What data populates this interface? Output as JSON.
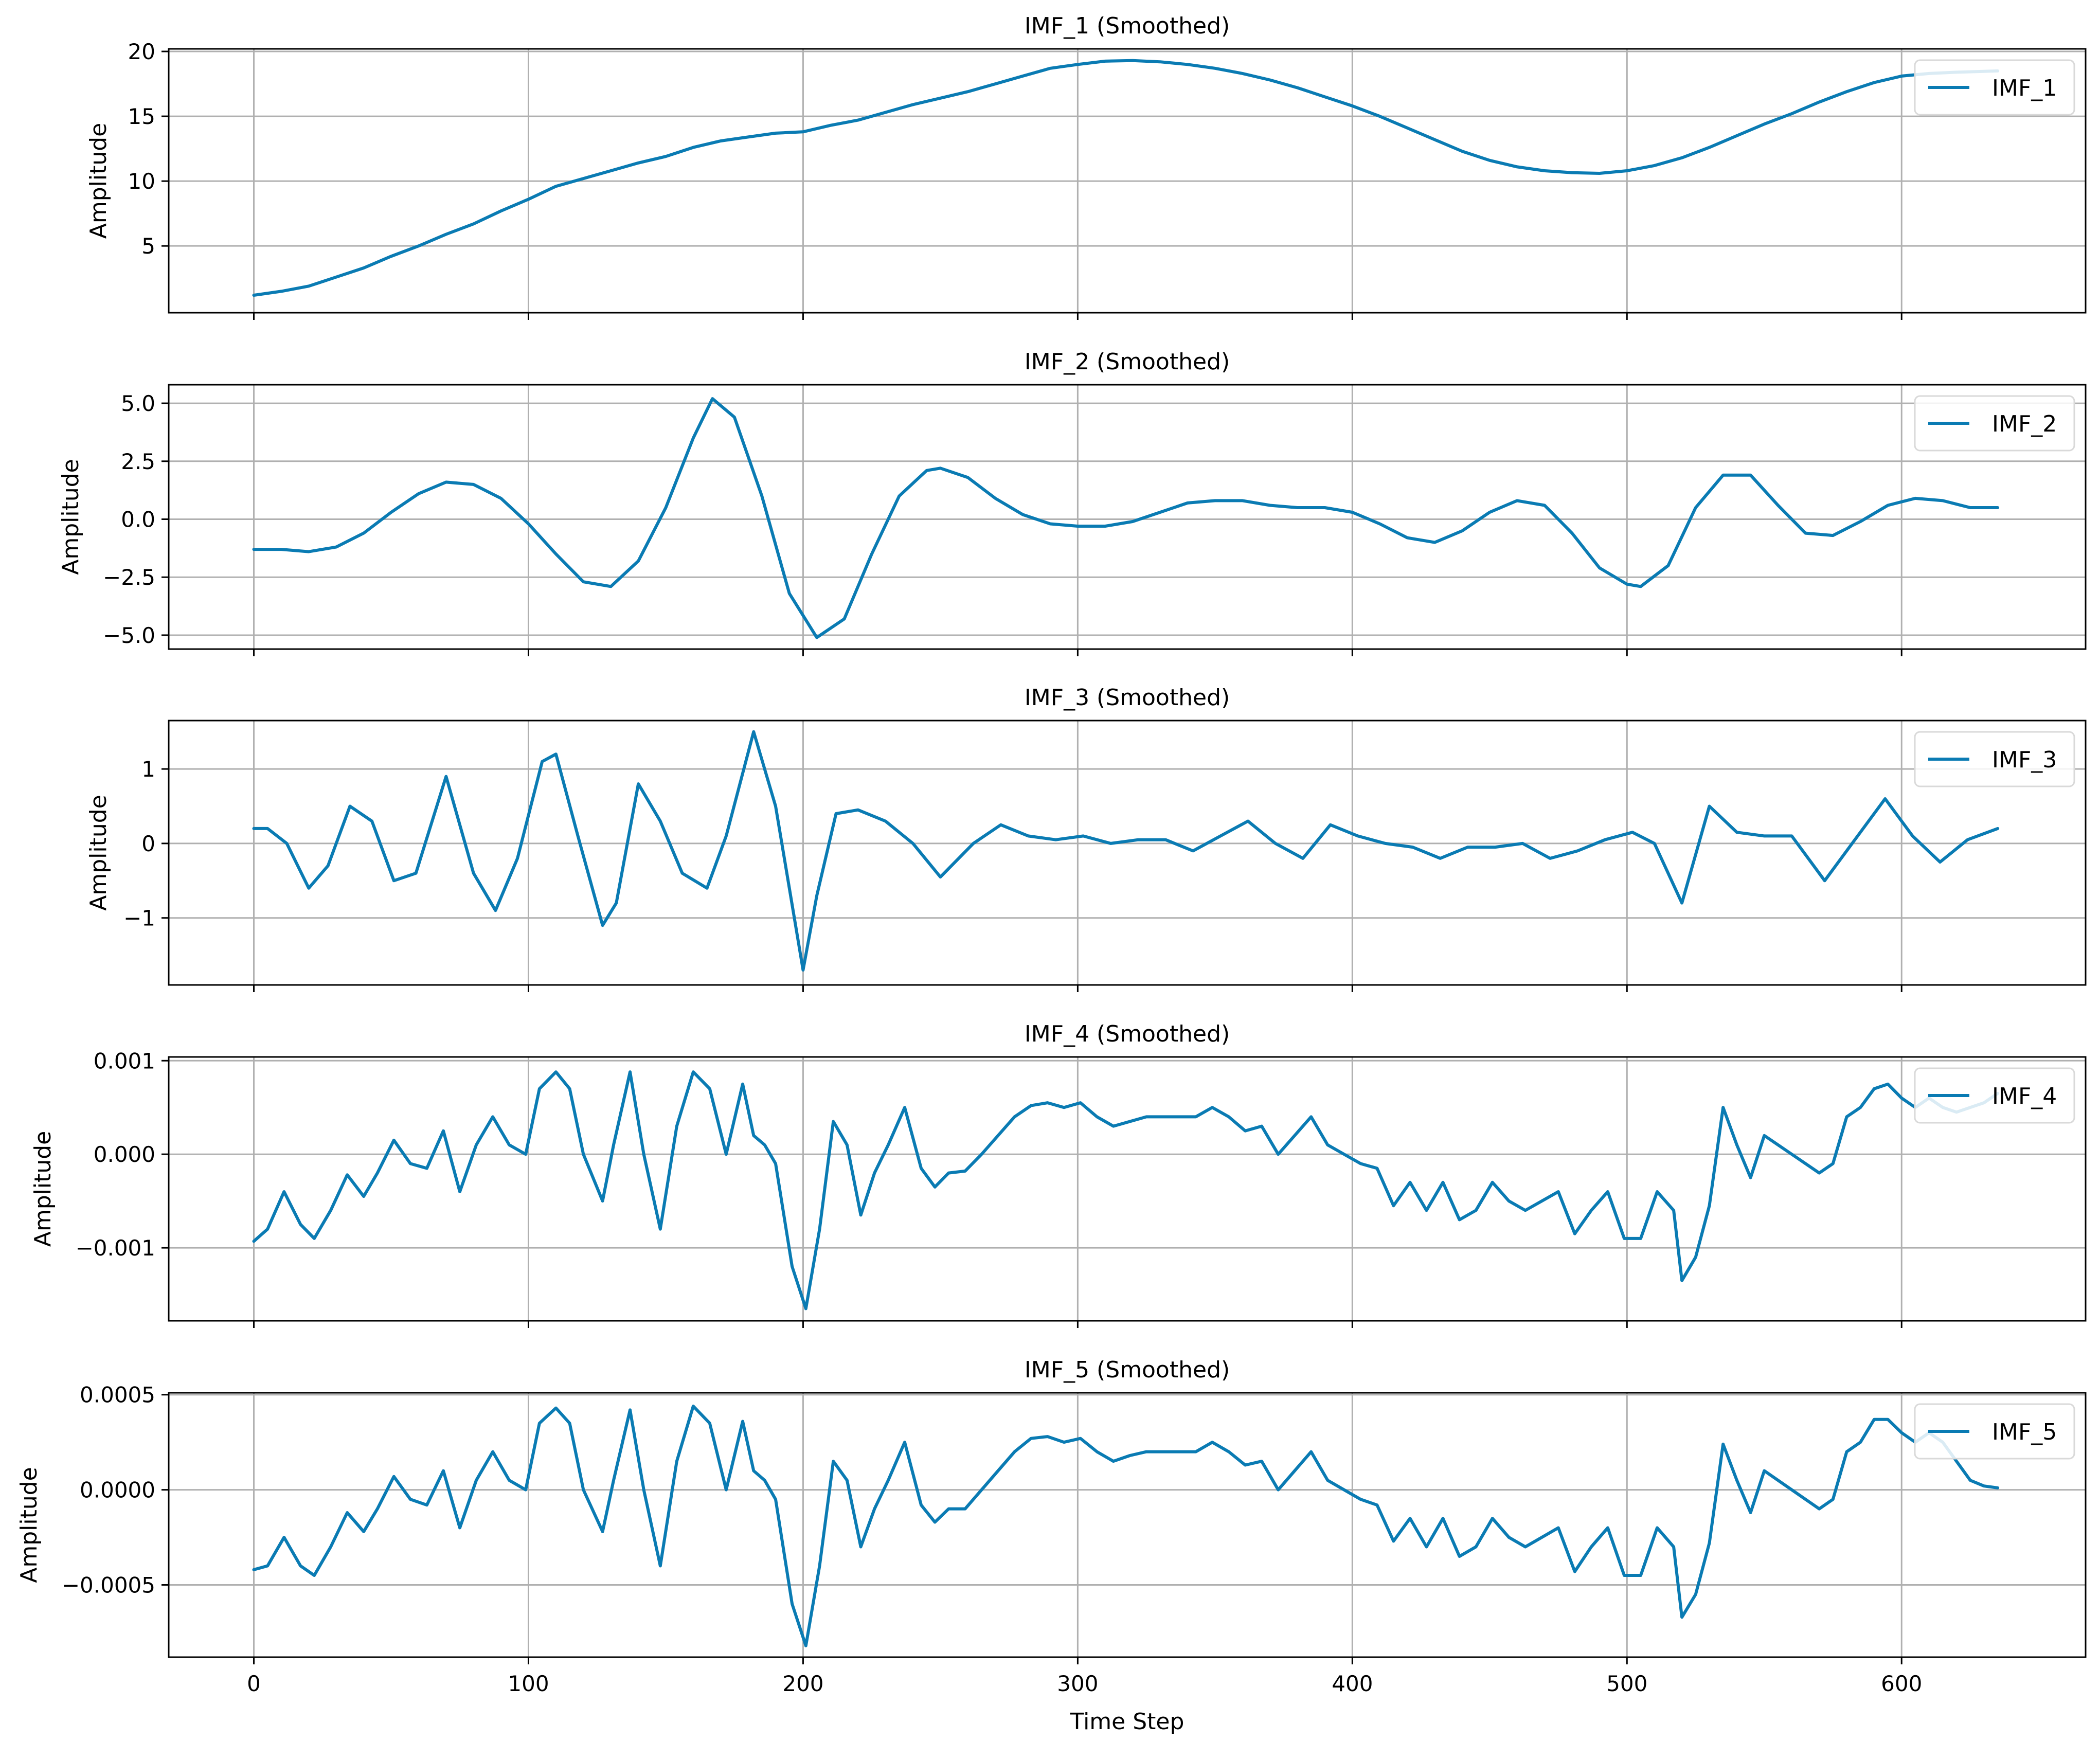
{
  "x_axis": {
    "label": "Time Step",
    "ticks": [
      "0",
      "100",
      "200",
      "300",
      "400",
      "500",
      "600"
    ]
  },
  "colors": {
    "line": "#0a7bb3",
    "grid": "#b0b0b0",
    "axes": "#000000",
    "background": "#ffffff",
    "legend_border": "#d9d9d9"
  },
  "chart_data": [
    {
      "type": "line",
      "title": "IMF_1 (Smoothed)",
      "ylabel": "Amplitude",
      "yticks": [
        5,
        10,
        15,
        20
      ],
      "ytick_labels": [
        "5",
        "10",
        "15",
        "20"
      ],
      "ylim": [
        -0.15,
        20.2
      ],
      "xlim": [
        -31,
        667
      ],
      "grid": true,
      "legend": {
        "position": "top-right",
        "label": "IMF_1"
      },
      "series": [
        {
          "name": "IMF_1",
          "x": [
            0,
            10,
            20,
            30,
            40,
            50,
            60,
            70,
            80,
            90,
            100,
            110,
            120,
            130,
            140,
            150,
            160,
            170,
            180,
            190,
            200,
            210,
            220,
            230,
            240,
            250,
            260,
            270,
            280,
            290,
            300,
            310,
            320,
            330,
            340,
            350,
            360,
            370,
            380,
            390,
            400,
            410,
            420,
            430,
            440,
            450,
            460,
            470,
            480,
            490,
            500,
            510,
            520,
            530,
            540,
            550,
            560,
            570,
            580,
            590,
            600,
            610,
            620,
            635
          ],
          "y": [
            1.2,
            1.5,
            1.9,
            2.6,
            3.3,
            4.2,
            5.0,
            5.9,
            6.7,
            7.7,
            8.6,
            9.6,
            10.2,
            10.8,
            11.4,
            11.9,
            12.6,
            13.1,
            13.4,
            13.7,
            13.8,
            14.3,
            14.7,
            15.3,
            15.9,
            16.4,
            16.9,
            17.5,
            18.1,
            18.7,
            19.0,
            19.25,
            19.3,
            19.2,
            19.0,
            18.7,
            18.3,
            17.8,
            17.2,
            16.5,
            15.8,
            15.0,
            14.1,
            13.2,
            12.3,
            11.6,
            11.1,
            10.8,
            10.65,
            10.6,
            10.8,
            11.2,
            11.8,
            12.6,
            13.5,
            14.4,
            15.2,
            16.1,
            16.9,
            17.6,
            18.1,
            18.3,
            18.4,
            18.5
          ]
        }
      ]
    },
    {
      "type": "line",
      "title": "IMF_2 (Smoothed)",
      "ylabel": "Amplitude",
      "yticks": [
        -5.0,
        -2.5,
        0.0,
        2.5,
        5.0
      ],
      "ytick_labels": [
        "−5.0",
        "−2.5",
        "0.0",
        "2.5",
        "5.0"
      ],
      "ylim": [
        -5.6,
        5.8
      ],
      "xlim": [
        -31,
        667
      ],
      "grid": true,
      "legend": {
        "position": "top-right",
        "label": "IMF_2"
      },
      "series": [
        {
          "name": "IMF_2",
          "x": [
            0,
            10,
            20,
            30,
            40,
            50,
            60,
            70,
            80,
            90,
            100,
            110,
            120,
            130,
            140,
            150,
            160,
            167,
            175,
            185,
            195,
            205,
            215,
            225,
            235,
            245,
            250,
            260,
            270,
            280,
            290,
            300,
            310,
            320,
            330,
            340,
            350,
            360,
            370,
            380,
            390,
            400,
            410,
            420,
            430,
            440,
            450,
            460,
            470,
            480,
            490,
            500,
            505,
            515,
            525,
            535,
            545,
            555,
            565,
            575,
            585,
            595,
            605,
            615,
            625,
            635
          ],
          "y": [
            -1.3,
            -1.3,
            -1.4,
            -1.2,
            -0.6,
            0.3,
            1.1,
            1.6,
            1.5,
            0.9,
            -0.2,
            -1.5,
            -2.7,
            -2.9,
            -1.8,
            0.5,
            3.5,
            5.2,
            4.4,
            1.0,
            -3.2,
            -5.1,
            -4.3,
            -1.5,
            1.0,
            2.1,
            2.2,
            1.8,
            0.9,
            0.2,
            -0.2,
            -0.3,
            -0.3,
            -0.1,
            0.3,
            0.7,
            0.8,
            0.8,
            0.6,
            0.5,
            0.5,
            0.3,
            -0.2,
            -0.8,
            -1.0,
            -0.5,
            0.3,
            0.8,
            0.6,
            -0.6,
            -2.1,
            -2.8,
            -2.9,
            -2.0,
            0.5,
            1.9,
            1.9,
            0.6,
            -0.6,
            -0.7,
            -0.1,
            0.6,
            0.9,
            0.8,
            0.5,
            0.5
          ]
        }
      ]
    },
    {
      "type": "line",
      "title": "IMF_3 (Smoothed)",
      "ylabel": "Amplitude",
      "yticks": [
        -1,
        0,
        1
      ],
      "ytick_labels": [
        "−1",
        "0",
        "1"
      ],
      "ylim": [
        -1.9,
        1.65
      ],
      "xlim": [
        -31,
        667
      ],
      "grid": true,
      "legend": {
        "position": "top-right",
        "label": "IMF_3"
      },
      "series": [
        {
          "name": "IMF_3",
          "x": [
            0,
            5,
            12,
            20,
            27,
            35,
            43,
            51,
            59,
            70,
            80,
            88,
            96,
            105,
            110,
            118,
            127,
            132,
            140,
            148,
            156,
            165,
            172,
            182,
            190,
            200,
            205,
            212,
            220,
            230,
            240,
            250,
            262,
            272,
            282,
            292,
            302,
            312,
            322,
            332,
            342,
            352,
            362,
            372,
            382,
            392,
            402,
            412,
            422,
            432,
            442,
            452,
            462,
            472,
            482,
            492,
            502,
            510,
            520,
            530,
            540,
            550,
            560,
            572,
            584,
            594,
            604,
            614,
            624,
            635
          ],
          "y": [
            0.2,
            0.2,
            0.0,
            -0.6,
            -0.3,
            0.5,
            0.3,
            -0.5,
            -0.4,
            0.9,
            -0.4,
            -0.9,
            -0.2,
            1.1,
            1.2,
            0.1,
            -1.1,
            -0.8,
            0.8,
            0.3,
            -0.4,
            -0.6,
            0.1,
            1.5,
            0.5,
            -1.7,
            -0.7,
            0.4,
            0.45,
            0.3,
            0.0,
            -0.45,
            0.0,
            0.25,
            0.1,
            0.05,
            0.1,
            0.0,
            0.05,
            0.05,
            -0.1,
            0.1,
            0.3,
            0.0,
            -0.2,
            0.25,
            0.1,
            0.0,
            -0.05,
            -0.2,
            -0.05,
            -0.05,
            0.0,
            -0.2,
            -0.1,
            0.05,
            0.15,
            0.0,
            -0.8,
            0.5,
            0.15,
            0.1,
            0.1,
            -0.5,
            0.1,
            0.6,
            0.1,
            -0.25,
            0.05,
            0.2
          ]
        }
      ]
    },
    {
      "type": "line",
      "title": "IMF_4 (Smoothed)",
      "ylabel": "Amplitude",
      "yticks": [
        -0.001,
        0.0,
        0.001
      ],
      "ytick_labels": [
        "−0.001",
        "0.000",
        "0.001"
      ],
      "ylim": [
        -0.00178,
        0.00104
      ],
      "xlim": [
        -31,
        667
      ],
      "grid": true,
      "legend": {
        "position": "top-right",
        "label": "IMF_4"
      },
      "series": [
        {
          "name": "IMF_4",
          "x": [
            0,
            5,
            11,
            17,
            22,
            28,
            34,
            40,
            45,
            51,
            57,
            63,
            69,
            75,
            81,
            87,
            93,
            99,
            104,
            110,
            115,
            120,
            127,
            131,
            137,
            142,
            148,
            154,
            160,
            166,
            172,
            178,
            182,
            186,
            190,
            196,
            201,
            206,
            211,
            216,
            221,
            226,
            231,
            237,
            243,
            248,
            253,
            259,
            265,
            271,
            277,
            283,
            289,
            295,
            301,
            307,
            313,
            319,
            325,
            331,
            337,
            343,
            349,
            355,
            361,
            367,
            373,
            379,
            385,
            391,
            397,
            403,
            409,
            415,
            421,
            427,
            433,
            439,
            445,
            451,
            457,
            463,
            469,
            475,
            481,
            487,
            493,
            499,
            505,
            511,
            517,
            520,
            525,
            530,
            535,
            540,
            545,
            550,
            555,
            560,
            565,
            570,
            575,
            580,
            585,
            590,
            595,
            600,
            605,
            610,
            615,
            620,
            625,
            630,
            635
          ],
          "y": [
            -0.00093,
            -0.0008,
            -0.0004,
            -0.00075,
            -0.0009,
            -0.0006,
            -0.00022,
            -0.00045,
            -0.0002,
            0.00015,
            -0.0001,
            -0.00015,
            0.00025,
            -0.0004,
            0.0001,
            0.0004,
            0.0001,
            0.0,
            0.0007,
            0.00088,
            0.0007,
            0.0,
            -0.0005,
            0.0001,
            0.00088,
            0.0,
            -0.0008,
            0.0003,
            0.00088,
            0.0007,
            0.0,
            0.00075,
            0.0002,
            0.0001,
            -0.0001,
            -0.0012,
            -0.00165,
            -0.0008,
            0.00035,
            0.0001,
            -0.00065,
            -0.0002,
            0.0001,
            0.0005,
            -0.00015,
            -0.00035,
            -0.0002,
            -0.00018,
            0.0,
            0.0002,
            0.0004,
            0.00052,
            0.00055,
            0.0005,
            0.00055,
            0.0004,
            0.0003,
            0.00035,
            0.0004,
            0.0004,
            0.0004,
            0.0004,
            0.0005,
            0.0004,
            0.00025,
            0.0003,
            0.0,
            0.0002,
            0.0004,
            0.0001,
            0.0,
            -0.0001,
            -0.00015,
            -0.00055,
            -0.0003,
            -0.0006,
            -0.0003,
            -0.0007,
            -0.0006,
            -0.0003,
            -0.0005,
            -0.0006,
            -0.0005,
            -0.0004,
            -0.00085,
            -0.0006,
            -0.0004,
            -0.0009,
            -0.0009,
            -0.0004,
            -0.0006,
            -0.00135,
            -0.0011,
            -0.00055,
            0.0005,
            0.0001,
            -0.00025,
            0.0002,
            0.0001,
            0.0,
            -0.0001,
            -0.0002,
            -0.0001,
            0.0004,
            0.0005,
            0.0007,
            0.00075,
            0.0006,
            0.0005,
            0.0006,
            0.0005,
            0.00045,
            0.0005,
            0.00055,
            0.00065
          ]
        }
      ]
    },
    {
      "type": "line",
      "title": "IMF_5 (Smoothed)",
      "ylabel": "Amplitude",
      "yticks": [
        -0.0005,
        0.0,
        0.0005
      ],
      "ytick_labels": [
        "−0.0005",
        "0.0000",
        "0.0005"
      ],
      "ylim": [
        -0.00088,
        0.00051
      ],
      "xlim": [
        -31,
        667
      ],
      "grid": true,
      "legend": {
        "position": "top-right",
        "label": "IMF_5"
      },
      "series": [
        {
          "name": "IMF_5",
          "x": [
            0,
            5,
            11,
            17,
            22,
            28,
            34,
            40,
            45,
            51,
            57,
            63,
            69,
            75,
            81,
            87,
            93,
            99,
            104,
            110,
            115,
            120,
            127,
            131,
            137,
            142,
            148,
            154,
            160,
            166,
            172,
            178,
            182,
            186,
            190,
            196,
            201,
            206,
            211,
            216,
            221,
            226,
            231,
            237,
            243,
            248,
            253,
            259,
            265,
            271,
            277,
            283,
            289,
            295,
            301,
            307,
            313,
            319,
            325,
            331,
            337,
            343,
            349,
            355,
            361,
            367,
            373,
            379,
            385,
            391,
            397,
            403,
            409,
            415,
            421,
            427,
            433,
            439,
            445,
            451,
            457,
            463,
            469,
            475,
            481,
            487,
            493,
            499,
            505,
            511,
            517,
            520,
            525,
            530,
            535,
            540,
            545,
            550,
            555,
            560,
            565,
            570,
            575,
            580,
            585,
            590,
            595,
            600,
            605,
            610,
            615,
            620,
            625,
            630,
            635
          ],
          "y": [
            -0.00042,
            -0.0004,
            -0.00025,
            -0.0004,
            -0.00045,
            -0.0003,
            -0.00012,
            -0.00022,
            -0.0001,
            7e-05,
            -5e-05,
            -8e-05,
            0.0001,
            -0.0002,
            5e-05,
            0.0002,
            5e-05,
            0.0,
            0.00035,
            0.00043,
            0.00035,
            0.0,
            -0.00022,
            5e-05,
            0.00042,
            0.0,
            -0.0004,
            0.00015,
            0.00044,
            0.00035,
            0.0,
            0.00036,
            0.0001,
            5e-05,
            -5e-05,
            -0.0006,
            -0.00082,
            -0.0004,
            0.00015,
            5e-05,
            -0.0003,
            -0.0001,
            5e-05,
            0.00025,
            -8e-05,
            -0.00017,
            -0.0001,
            -0.0001,
            0.0,
            0.0001,
            0.0002,
            0.00027,
            0.00028,
            0.00025,
            0.00027,
            0.0002,
            0.00015,
            0.00018,
            0.0002,
            0.0002,
            0.0002,
            0.0002,
            0.00025,
            0.0002,
            0.00013,
            0.00015,
            0.0,
            0.0001,
            0.0002,
            5e-05,
            0.0,
            -5e-05,
            -8e-05,
            -0.00027,
            -0.00015,
            -0.0003,
            -0.00015,
            -0.00035,
            -0.0003,
            -0.00015,
            -0.00025,
            -0.0003,
            -0.00025,
            -0.0002,
            -0.00043,
            -0.0003,
            -0.0002,
            -0.00045,
            -0.00045,
            -0.0002,
            -0.0003,
            -0.00067,
            -0.00055,
            -0.00028,
            0.00024,
            5e-05,
            -0.00012,
            0.0001,
            5e-05,
            0.0,
            -5e-05,
            -0.0001,
            -5e-05,
            0.0002,
            0.00025,
            0.00037,
            0.00037,
            0.0003,
            0.00025,
            0.0003,
            0.00025,
            0.00015,
            5e-05,
            2e-05,
            1e-05
          ]
        }
      ]
    }
  ]
}
